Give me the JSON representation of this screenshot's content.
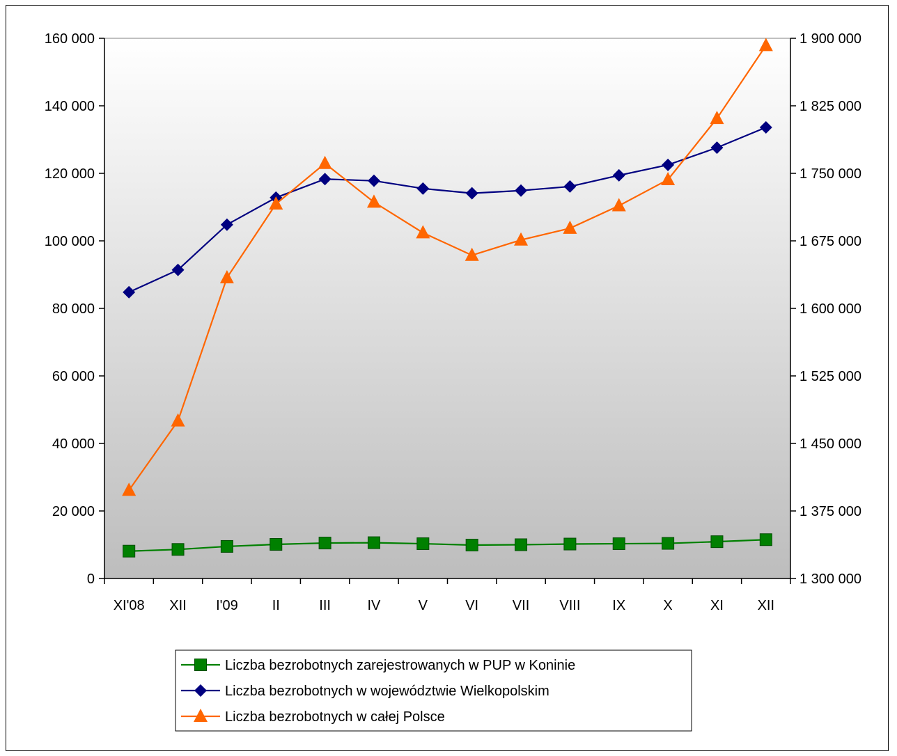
{
  "chart_data": {
    "type": "line",
    "categories": [
      "XI'08",
      "XII",
      "I'09",
      "II",
      "III",
      "IV",
      "V",
      "VI",
      "VII",
      "VIII",
      "IX",
      "X",
      "XI",
      "XII"
    ],
    "ylim": [
      0,
      160000
    ],
    "y2lim": [
      1300000,
      1900000
    ],
    "yticks": [
      "0",
      "20 000",
      "40 000",
      "60 000",
      "80 000",
      "100 000",
      "120 000",
      "140 000",
      "160 000"
    ],
    "y2ticks": [
      "1 300 000",
      "1 375 000",
      "1 450 000",
      "1 525 000",
      "1 600 000",
      "1 675 000",
      "1 750 000",
      "1 825 000",
      "1 900 000"
    ],
    "grid": false,
    "legend_position": "bottom",
    "series": [
      {
        "name": "Liczba bezrobotnych zarejestrowanych w PUP w Koninie",
        "axis": "left",
        "color": "#008000",
        "marker": "square",
        "values": [
          8100,
          8600,
          9500,
          10100,
          10500,
          10600,
          10300,
          9900,
          10000,
          10200,
          10300,
          10400,
          10900,
          11500
        ]
      },
      {
        "name": "Liczba bezrobotnych w województwie Wielkopolskim",
        "axis": "left",
        "color": "#000080",
        "marker": "diamond",
        "values": [
          84800,
          91400,
          104800,
          112800,
          118300,
          117800,
          115500,
          114100,
          114900,
          116100,
          119400,
          122500,
          127600,
          133600
        ]
      },
      {
        "name": "Liczba bezrobotnych w całej Polsce",
        "axis": "right",
        "color": "#FF6600",
        "marker": "triangle",
        "values": [
          1398000,
          1475000,
          1634000,
          1716000,
          1761000,
          1718000,
          1684000,
          1659000,
          1676000,
          1689000,
          1714000,
          1743000,
          1811000,
          1892000
        ]
      }
    ]
  }
}
